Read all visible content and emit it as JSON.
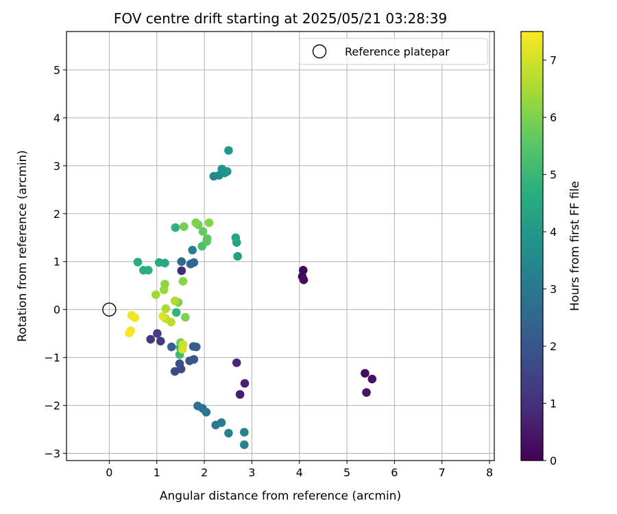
{
  "chart_data": {
    "type": "scatter",
    "title": "FOV centre drift starting at 2025/05/21 03:28:39",
    "xlabel": "Angular distance from reference (arcmin)",
    "ylabel": "Rotation from reference (arcmin)",
    "xlim": [
      -0.9,
      8.1
    ],
    "ylim": [
      -3.15,
      5.8
    ],
    "xticks": [
      0,
      1,
      2,
      3,
      4,
      5,
      6,
      7,
      8
    ],
    "yticks": [
      -3,
      -2,
      -1,
      0,
      1,
      2,
      3,
      4,
      5
    ],
    "grid": true,
    "legend": {
      "placement": "top-right",
      "entries": [
        "Reference platepar"
      ]
    },
    "reference_point": {
      "x": 0,
      "y": 0
    },
    "colorbar": {
      "label": "Hours from first FF file",
      "range": [
        0,
        7.5
      ],
      "ticks": [
        0,
        1,
        2,
        3,
        4,
        5,
        6,
        7
      ],
      "colormap": "viridis"
    },
    "points": [
      {
        "x": 4.08,
        "y": 0.82,
        "c": 0.1
      },
      {
        "x": 4.06,
        "y": 0.69,
        "c": 0.15
      },
      {
        "x": 4.09,
        "y": 0.62,
        "c": 0.2
      },
      {
        "x": 5.38,
        "y": -1.33,
        "c": 0.3
      },
      {
        "x": 5.53,
        "y": -1.45,
        "c": 0.35
      },
      {
        "x": 5.41,
        "y": -1.73,
        "c": 0.4
      },
      {
        "x": 2.75,
        "y": -1.77,
        "c": 0.6
      },
      {
        "x": 2.85,
        "y": -1.54,
        "c": 0.7
      },
      {
        "x": 2.68,
        "y": -1.11,
        "c": 0.8
      },
      {
        "x": 1.52,
        "y": 0.81,
        "c": 0.9
      },
      {
        "x": 0.87,
        "y": -0.62,
        "c": 1.2
      },
      {
        "x": 1.08,
        "y": -0.66,
        "c": 1.3
      },
      {
        "x": 1.01,
        "y": -0.5,
        "c": 1.4
      },
      {
        "x": 1.38,
        "y": -1.29,
        "c": 1.6
      },
      {
        "x": 1.51,
        "y": -1.24,
        "c": 1.7
      },
      {
        "x": 1.48,
        "y": -1.13,
        "c": 1.8
      },
      {
        "x": 1.69,
        "y": -1.07,
        "c": 1.9
      },
      {
        "x": 1.78,
        "y": -1.04,
        "c": 2.0
      },
      {
        "x": 1.77,
        "y": -0.77,
        "c": 2.1
      },
      {
        "x": 1.83,
        "y": -0.78,
        "c": 2.2
      },
      {
        "x": 1.31,
        "y": -0.78,
        "c": 2.3
      },
      {
        "x": 1.71,
        "y": 0.95,
        "c": 2.4
      },
      {
        "x": 1.78,
        "y": 0.98,
        "c": 2.5
      },
      {
        "x": 1.52,
        "y": 1.0,
        "c": 2.6
      },
      {
        "x": 1.86,
        "y": -2.01,
        "c": 2.7
      },
      {
        "x": 1.96,
        "y": -2.06,
        "c": 2.8
      },
      {
        "x": 2.04,
        "y": -2.14,
        "c": 2.9
      },
      {
        "x": 2.24,
        "y": -2.41,
        "c": 3.0
      },
      {
        "x": 2.36,
        "y": -2.36,
        "c": 3.1
      },
      {
        "x": 2.51,
        "y": -2.58,
        "c": 3.2
      },
      {
        "x": 2.84,
        "y": -2.56,
        "c": 3.25
      },
      {
        "x": 2.84,
        "y": -2.82,
        "c": 3.3
      },
      {
        "x": 1.75,
        "y": 1.24,
        "c": 3.2
      },
      {
        "x": 2.2,
        "y": 2.78,
        "c": 3.4
      },
      {
        "x": 2.31,
        "y": 2.8,
        "c": 3.55
      },
      {
        "x": 2.43,
        "y": 2.85,
        "c": 3.7
      },
      {
        "x": 2.37,
        "y": 2.93,
        "c": 3.8
      },
      {
        "x": 2.48,
        "y": 2.88,
        "c": 3.9
      },
      {
        "x": 2.51,
        "y": 3.32,
        "c": 4.0
      },
      {
        "x": 2.7,
        "y": 1.11,
        "c": 4.2
      },
      {
        "x": 2.68,
        "y": 1.4,
        "c": 4.3
      },
      {
        "x": 2.66,
        "y": 1.5,
        "c": 4.4
      },
      {
        "x": 1.17,
        "y": 0.97,
        "c": 4.5
      },
      {
        "x": 1.05,
        "y": 0.98,
        "c": 4.55
      },
      {
        "x": 0.6,
        "y": 0.99,
        "c": 4.6
      },
      {
        "x": 0.72,
        "y": 0.82,
        "c": 4.65
      },
      {
        "x": 0.82,
        "y": 0.82,
        "c": 4.7
      },
      {
        "x": 1.39,
        "y": 1.71,
        "c": 4.8
      },
      {
        "x": 1.41,
        "y": -0.06,
        "c": 4.9
      },
      {
        "x": 1.49,
        "y": -0.79,
        "c": 5.0
      },
      {
        "x": 1.48,
        "y": -0.94,
        "c": 5.1
      },
      {
        "x": 1.95,
        "y": 1.32,
        "c": 5.3
      },
      {
        "x": 2.05,
        "y": 1.42,
        "c": 5.5
      },
      {
        "x": 2.06,
        "y": 1.48,
        "c": 5.6
      },
      {
        "x": 1.97,
        "y": 1.63,
        "c": 5.7
      },
      {
        "x": 1.87,
        "y": 1.77,
        "c": 5.8
      },
      {
        "x": 1.57,
        "y": 1.73,
        "c": 5.9
      },
      {
        "x": 1.82,
        "y": 1.81,
        "c": 6.0
      },
      {
        "x": 2.1,
        "y": 1.81,
        "c": 6.1
      },
      {
        "x": 1.5,
        "y": -0.69,
        "c": 5.8
      },
      {
        "x": 1.45,
        "y": 0.15,
        "c": 5.9
      },
      {
        "x": 1.6,
        "y": -0.16,
        "c": 6.0
      },
      {
        "x": 1.55,
        "y": 0.59,
        "c": 6.1
      },
      {
        "x": 1.17,
        "y": 0.53,
        "c": 6.2
      },
      {
        "x": 1.15,
        "y": 0.41,
        "c": 6.3
      },
      {
        "x": 0.98,
        "y": 0.31,
        "c": 6.4
      },
      {
        "x": 1.19,
        "y": 0.02,
        "c": 6.5
      },
      {
        "x": 1.38,
        "y": 0.18,
        "c": 6.6
      },
      {
        "x": 1.3,
        "y": -0.26,
        "c": 6.7
      },
      {
        "x": 1.19,
        "y": -0.19,
        "c": 6.8
      },
      {
        "x": 1.55,
        "y": -0.73,
        "c": 6.9
      },
      {
        "x": 1.54,
        "y": -0.83,
        "c": 7.0
      },
      {
        "x": 1.13,
        "y": -0.14,
        "c": 7.1
      },
      {
        "x": 0.47,
        "y": -0.12,
        "c": 7.3
      },
      {
        "x": 0.54,
        "y": -0.17,
        "c": 7.35
      },
      {
        "x": 0.45,
        "y": -0.44,
        "c": 7.4
      },
      {
        "x": 0.42,
        "y": -0.49,
        "c": 7.45
      }
    ]
  }
}
